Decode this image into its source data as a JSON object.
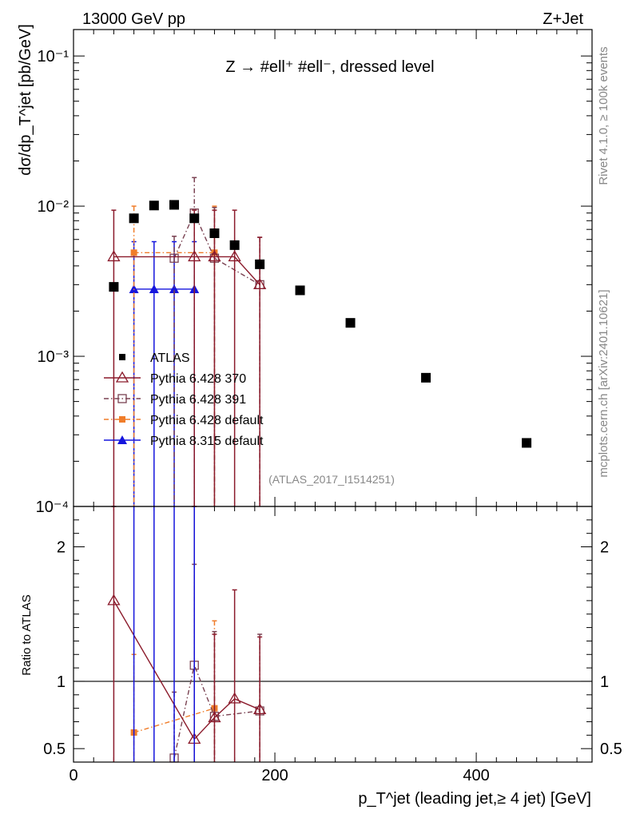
{
  "header": {
    "left": "13000 GeV pp",
    "right": "Z+Jet"
  },
  "side": {
    "right_top": "Rivet 4.1.0, ≥ 100k events",
    "right_bottom": "mcplots.cern.ch [arXiv:2401.10621]"
  },
  "chart_data": {
    "type": "scatter",
    "title": "Z → #ell⁺ #ell⁻, dressed level",
    "analysis_label": "(ATLAS_2017_I1514251)",
    "main": {
      "ylabel": "dσ/dp_T^jet [pb/GeV]",
      "yscale": "log",
      "ylim": [
        0.0001,
        0.15
      ],
      "y_ticks": [
        "10⁻⁴",
        "10⁻³",
        "10⁻²",
        "10⁻¹"
      ]
    },
    "ratio": {
      "ylabel": "Ratio to ATLAS",
      "ylim": [
        0.4,
        2.3
      ],
      "y_ticks": [
        "0.5",
        "1",
        "2"
      ]
    },
    "xlabel": "p_T^jet (leading jet,≥ 4 jet) [GeV]",
    "xlim": [
      0,
      515
    ],
    "x_ticks": [
      "0",
      "200",
      "400"
    ],
    "legend": [
      "ATLAS",
      "Pythia 6.428 370",
      "Pythia 6.428 391",
      "Pythia 6.428 default",
      "Pythia 8.315 default"
    ],
    "legend_position": "bottom-left",
    "colors": {
      "atlas": "#000000",
      "p370": "#8b1a2b",
      "p391": "#7a4252",
      "pdef": "#f07d2a",
      "p8": "#1515dd"
    },
    "series": [
      {
        "name": "ATLAS",
        "x": [
          40,
          60,
          80,
          100,
          120,
          140,
          160,
          185,
          225,
          275,
          350,
          450
        ],
        "y": [
          0.0029,
          0.0083,
          0.0101,
          0.0102,
          0.0083,
          0.0066,
          0.0055,
          0.0041,
          0.00275,
          0.00167,
          0.00072,
          0.000265
        ]
      },
      {
        "name": "Pythia 6.428 370",
        "x": [
          40,
          120,
          140,
          160,
          185
        ],
        "y": [
          0.0046,
          0.0046,
          0.0046,
          0.0046,
          0.003
        ],
        "yerr_up": [
          0.0094,
          0.0094,
          0.0094,
          0.0094,
          0.0062
        ],
        "ratio": [
          1.6,
          0.57,
          0.73,
          0.87,
          0.79
        ],
        "ratio_err_up": [
          2.35,
          2.35,
          1.35,
          1.68,
          1.33
        ]
      },
      {
        "name": "Pythia 6.428 391",
        "x": [
          100,
          120,
          140,
          185
        ],
        "y": [
          0.0045,
          0.009,
          0.0045,
          0.003
        ],
        "yerr_up": [
          0.0063,
          0.0155,
          0.0098,
          0.0062
        ],
        "ratio": [
          0.43,
          1.12,
          0.74,
          0.78
        ],
        "ratio_err_up": [
          0.92,
          1.87,
          1.37,
          1.35
        ]
      },
      {
        "name": "Pythia 6.428 default",
        "x": [
          60,
          140
        ],
        "y": [
          0.0049,
          0.0049
        ],
        "yerr_up": [
          0.01,
          0.01
        ],
        "ratio": [
          0.62,
          0.8
        ],
        "ratio_err_up": [
          1.2,
          1.45
        ]
      },
      {
        "name": "Pythia 8.315 default",
        "x": [
          60,
          80,
          100,
          120
        ],
        "y": [
          0.0028,
          0.0028,
          0.0028,
          0.0028
        ],
        "yerr_up": [
          0.0058,
          0.0058,
          0.0058,
          0.0058
        ],
        "ratio": [],
        "ratio_err_up": []
      }
    ]
  }
}
